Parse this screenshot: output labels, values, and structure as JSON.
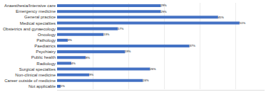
{
  "chart_data": {
    "type": "bar",
    "orientation": "horizontal",
    "categories": [
      "Not applicable",
      "Career outside of medicine",
      "Non-clinical medicine",
      "Surgical specialties",
      "Radiology",
      "Public health",
      "Psychiatry",
      "Paediatrics",
      "Pathology",
      "Oncology",
      "Obstetrics and gynaecology",
      "Medical specialties",
      "General practice",
      "Emergency medicine",
      "Anaesthesia/Intensive care"
    ],
    "values": [
      1,
      24,
      9,
      26,
      4,
      8,
      19,
      37,
      3,
      13,
      17,
      51,
      45,
      29,
      29
    ],
    "value_labels": [
      "1%",
      "24%",
      "9%",
      "26%",
      "4%",
      "8%",
      "19%",
      "37%",
      "3%",
      "13%",
      "17%",
      "51%",
      "45%",
      "29%",
      "29%"
    ],
    "color": "#4472C4",
    "xlim": [
      0,
      58
    ],
    "xticks": [
      0,
      10,
      20,
      30,
      40,
      50
    ],
    "grid": true,
    "data_labels": true,
    "tick_labels": "y"
  }
}
